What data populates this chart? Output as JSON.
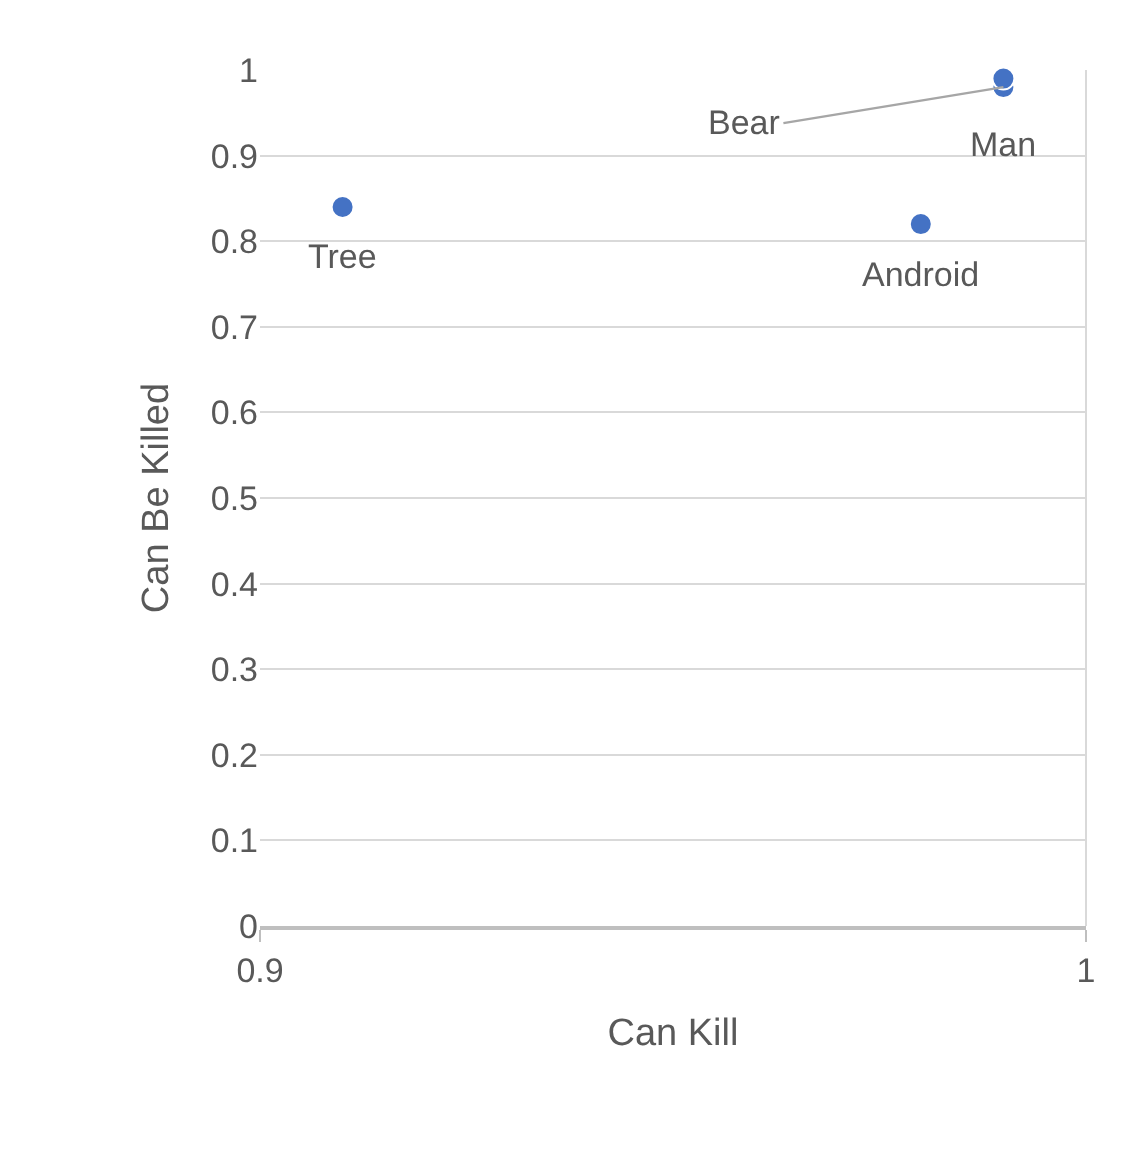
{
  "chart_data": {
    "type": "scatter",
    "xlabel": "Can Kill",
    "ylabel": "Can Be Killed",
    "x": [
      0.91,
      0.99,
      0.99,
      0.98
    ],
    "series": [
      {
        "color": "#4472c4",
        "values": [
          0.84,
          0.98,
          0.99,
          0.82
        ]
      }
    ],
    "annotations": [
      {
        "text": "Tree",
        "x": 0.91,
        "y": 0.84
      },
      {
        "text": "Bear",
        "x": 0.99,
        "y": 0.98
      },
      {
        "text": "Man",
        "x": 0.99,
        "y": 0.99
      },
      {
        "text": "Android",
        "x": 0.98,
        "y": 0.82
      }
    ],
    "xlim": [
      0.9,
      1
    ],
    "xticks": [
      0.9,
      1
    ],
    "ylim": [
      0,
      1
    ],
    "yticks": [
      0,
      0.1,
      0.2,
      0.3,
      0.4,
      0.5,
      0.6,
      0.7,
      0.8,
      0.9,
      1
    ],
    "grid": "y",
    "marker": "circle",
    "legend": false
  }
}
